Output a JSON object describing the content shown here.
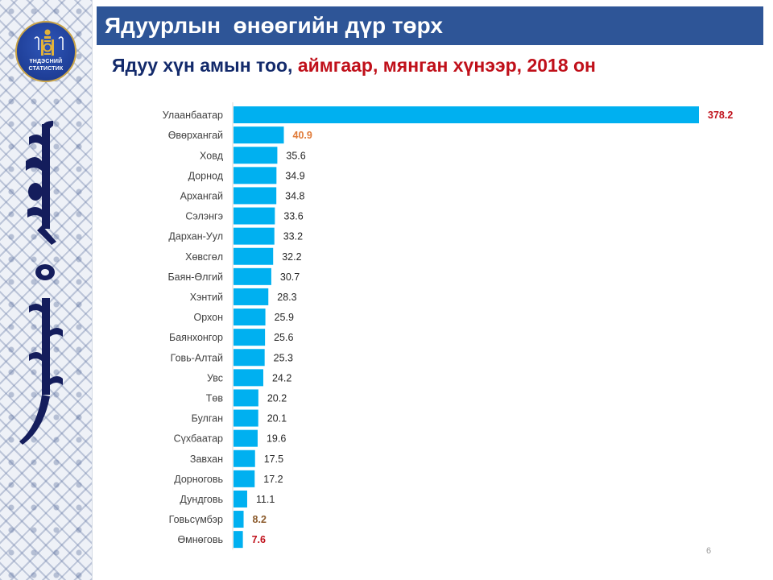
{
  "header": {
    "title": "Ядуурлын  өнөөгийн дүр төрх",
    "subtitle_part1": "Ядуу хүн амын тоо, ",
    "subtitle_part2": "аймгаар, мянган хүнээр, 2018 он"
  },
  "logo": {
    "line1": "ҮНДЭСНИЙ",
    "line2": "СТАТИСТИК"
  },
  "colors": {
    "title_bar": "#2e5597",
    "bar": "#00b0f0",
    "highlight_max": "#c0101a",
    "highlight_second": "#e07b39",
    "highlight_low": "#8b5a2b"
  },
  "chart_data": {
    "type": "bar",
    "orientation": "horizontal",
    "title": "Ядуу хүн амын тоо, аймгаар, мянган хүнээр, 2018 он",
    "xlabel": "",
    "ylabel": "",
    "xlim": [
      0,
      378.2
    ],
    "grid": false,
    "categories": [
      "Улаанбаатар",
      "Өвөрхангай",
      "Ховд",
      "Дорнод",
      "Архангай",
      "Сэлэнгэ",
      "Дархан-Уул",
      "Хөвсгөл",
      "Баян-Өлгий",
      "Хэнтий",
      "Орхон",
      "Баянхонгор",
      "Говь-Алтай",
      "Увс",
      "Төв",
      "Булган",
      "Сүхбаатар",
      "Завхан",
      "Дорноговь",
      "Дундговь",
      "Говьсүмбэр",
      "Өмнөговь"
    ],
    "values": [
      378.2,
      40.9,
      35.6,
      34.9,
      34.8,
      33.6,
      33.2,
      32.2,
      30.7,
      28.3,
      25.9,
      25.6,
      25.3,
      24.2,
      20.2,
      20.1,
      19.6,
      17.5,
      17.2,
      11.1,
      8.2,
      7.6
    ],
    "value_labels": [
      "378.2",
      "40.9",
      "35.6",
      "34.9",
      "34.8",
      "33.6",
      "33.2",
      "32.2",
      "30.7",
      "28.3",
      "25.9",
      "25.6",
      "25.3",
      "24.2",
      "20.2",
      "20.1",
      "19.6",
      "17.5",
      "17.2",
      "11.1",
      "8.2",
      "7.6"
    ],
    "label_colors": [
      "#c0101a",
      "#e07b39",
      "#262626",
      "#262626",
      "#262626",
      "#262626",
      "#262626",
      "#262626",
      "#262626",
      "#262626",
      "#262626",
      "#262626",
      "#262626",
      "#262626",
      "#262626",
      "#262626",
      "#262626",
      "#262626",
      "#262626",
      "#262626",
      "#8b5a2b",
      "#c0101a"
    ],
    "label_bold": [
      true,
      true,
      false,
      false,
      false,
      false,
      false,
      false,
      false,
      false,
      false,
      false,
      false,
      false,
      false,
      false,
      false,
      false,
      false,
      false,
      true,
      true
    ]
  },
  "footer": {
    "page_number": "6"
  }
}
